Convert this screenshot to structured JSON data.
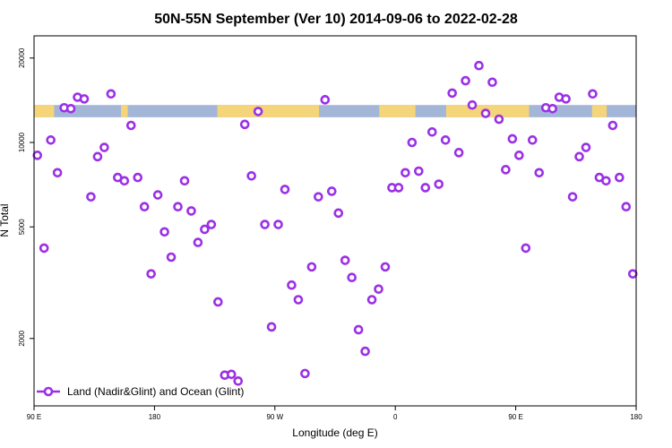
{
  "chart_data": {
    "type": "scatter",
    "title": "50N-55N September (Ver 10)   2014-09-06 to 2022-02-28",
    "xlabel": "Longitude (deg E)",
    "ylabel": "N Total",
    "x_ticks": [
      {
        "value": 0,
        "label": "90 E"
      },
      {
        "value": 90,
        "label": "180"
      },
      {
        "value": 180,
        "label": "90 W"
      },
      {
        "value": 270,
        "label": "0"
      },
      {
        "value": 360,
        "label": "90 E"
      },
      {
        "value": 450,
        "label": "180"
      }
    ],
    "y_ticks": [
      {
        "value": 2000,
        "label": "2000"
      },
      {
        "value": 5000,
        "label": "5000"
      },
      {
        "value": 10000,
        "label": "10000"
      },
      {
        "value": 20000,
        "label": "20000"
      }
    ],
    "y_scale": "log",
    "xlim": [
      0,
      450
    ],
    "ylim": [
      1150,
      24000
    ],
    "legend": {
      "position": "bottom-left",
      "label": "Land (Nadir&Glint) and Ocean (Glint)"
    },
    "colors": {
      "series": "#9b30e6",
      "ocean": "#a3b6d8",
      "land": "#f5d57a"
    },
    "surface_band": {
      "y_range": [
        12300,
        13600
      ],
      "land_spans": [
        [
          0,
          15
        ],
        [
          65,
          70
        ],
        [
          137,
          213
        ],
        [
          258,
          285
        ],
        [
          308,
          370
        ],
        [
          417,
          428
        ]
      ]
    },
    "series": [
      {
        "name": "Land (Nadir&Glint) and Ocean (Glint)",
        "points": [
          [
            2.5,
            9000
          ],
          [
            7.5,
            4200
          ],
          [
            12.5,
            10200
          ],
          [
            17.5,
            7800
          ],
          [
            22.5,
            13300
          ],
          [
            27.5,
            13200
          ],
          [
            32.5,
            14500
          ],
          [
            37.5,
            14300
          ],
          [
            42.5,
            6400
          ],
          [
            47.5,
            8900
          ],
          [
            52.5,
            9600
          ],
          [
            57.5,
            14900
          ],
          [
            62.5,
            7500
          ],
          [
            67.5,
            7300
          ],
          [
            72.5,
            11500
          ],
          [
            77.5,
            7500
          ],
          [
            82.5,
            5900
          ],
          [
            87.5,
            3400
          ],
          [
            92.5,
            6500
          ],
          [
            97.5,
            4800
          ],
          [
            102.5,
            3900
          ],
          [
            107.5,
            5900
          ],
          [
            112.5,
            7300
          ],
          [
            117.5,
            5700
          ],
          [
            122.5,
            4400
          ],
          [
            127.5,
            4900
          ],
          [
            132.5,
            5100
          ],
          [
            137.5,
            2700
          ],
          [
            142.5,
            1480
          ],
          [
            147.5,
            1490
          ],
          [
            152.5,
            1410
          ],
          [
            157.5,
            11600
          ],
          [
            162.5,
            7600
          ],
          [
            167.5,
            12900
          ],
          [
            172.5,
            5100
          ],
          [
            177.5,
            2200
          ],
          [
            182.5,
            5100
          ],
          [
            187.5,
            6800
          ],
          [
            192.5,
            3100
          ],
          [
            197.5,
            2750
          ],
          [
            202.5,
            1500
          ],
          [
            207.5,
            3600
          ],
          [
            212.5,
            6400
          ],
          [
            217.5,
            14200
          ],
          [
            222.5,
            6700
          ],
          [
            227.5,
            5600
          ],
          [
            232.5,
            3800
          ],
          [
            237.5,
            3300
          ],
          [
            242.5,
            2150
          ],
          [
            247.5,
            1800
          ],
          [
            252.5,
            2750
          ],
          [
            257.5,
            3000
          ],
          [
            262.5,
            3600
          ],
          [
            267.5,
            6900
          ],
          [
            272.5,
            6900
          ],
          [
            277.5,
            7800
          ],
          [
            282.5,
            10000
          ],
          [
            287.5,
            7900
          ],
          [
            292.5,
            6900
          ],
          [
            297.5,
            10900
          ],
          [
            302.5,
            7100
          ],
          [
            307.5,
            10200
          ],
          [
            312.5,
            15000
          ],
          [
            317.5,
            9200
          ],
          [
            322.5,
            16600
          ],
          [
            327.5,
            13600
          ],
          [
            332.5,
            18800
          ],
          [
            337.5,
            12700
          ],
          [
            342.5,
            16400
          ],
          [
            347.5,
            12100
          ],
          [
            352.5,
            8000
          ],
          [
            357.5,
            10300
          ],
          [
            362.5,
            9000
          ],
          [
            367.5,
            4200
          ],
          [
            372.5,
            10200
          ],
          [
            377.5,
            7800
          ],
          [
            382.5,
            13300
          ],
          [
            387.5,
            13200
          ],
          [
            392.5,
            14500
          ],
          [
            397.5,
            14300
          ],
          [
            402.5,
            6400
          ],
          [
            407.5,
            8900
          ],
          [
            412.5,
            9600
          ],
          [
            417.5,
            14900
          ],
          [
            422.5,
            7500
          ],
          [
            427.5,
            7300
          ],
          [
            432.5,
            11500
          ],
          [
            437.5,
            7500
          ],
          [
            442.5,
            5900
          ],
          [
            447.5,
            3400
          ]
        ]
      }
    ]
  }
}
